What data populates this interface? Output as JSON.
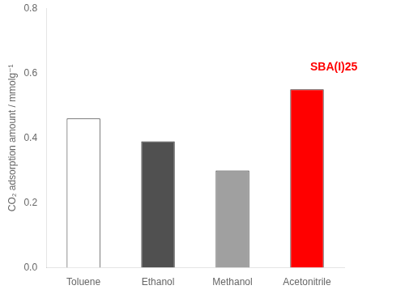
{
  "chart_data": {
    "type": "bar",
    "categories": [
      "Toluene",
      "Ethanol",
      "Methanol",
      "Acetonitrile"
    ],
    "values": [
      0.46,
      0.39,
      0.3,
      0.55
    ],
    "colors": [
      "white",
      "#505050",
      "#a0a0a0",
      "#ff0000"
    ],
    "ylabel": "CO₂ adsorption amount / mmolg⁻¹",
    "ylim": [
      0.0,
      0.8
    ],
    "yticks": [
      {
        "value": 0.0,
        "label": "0.0"
      },
      0.2,
      0.4,
      0.6,
      0.8
    ],
    "annotations": [
      {
        "text": "SBA(I)25",
        "x": "Acetonitrile",
        "y": 0.6,
        "color": "#ff0000"
      }
    ],
    "grid": false
  }
}
